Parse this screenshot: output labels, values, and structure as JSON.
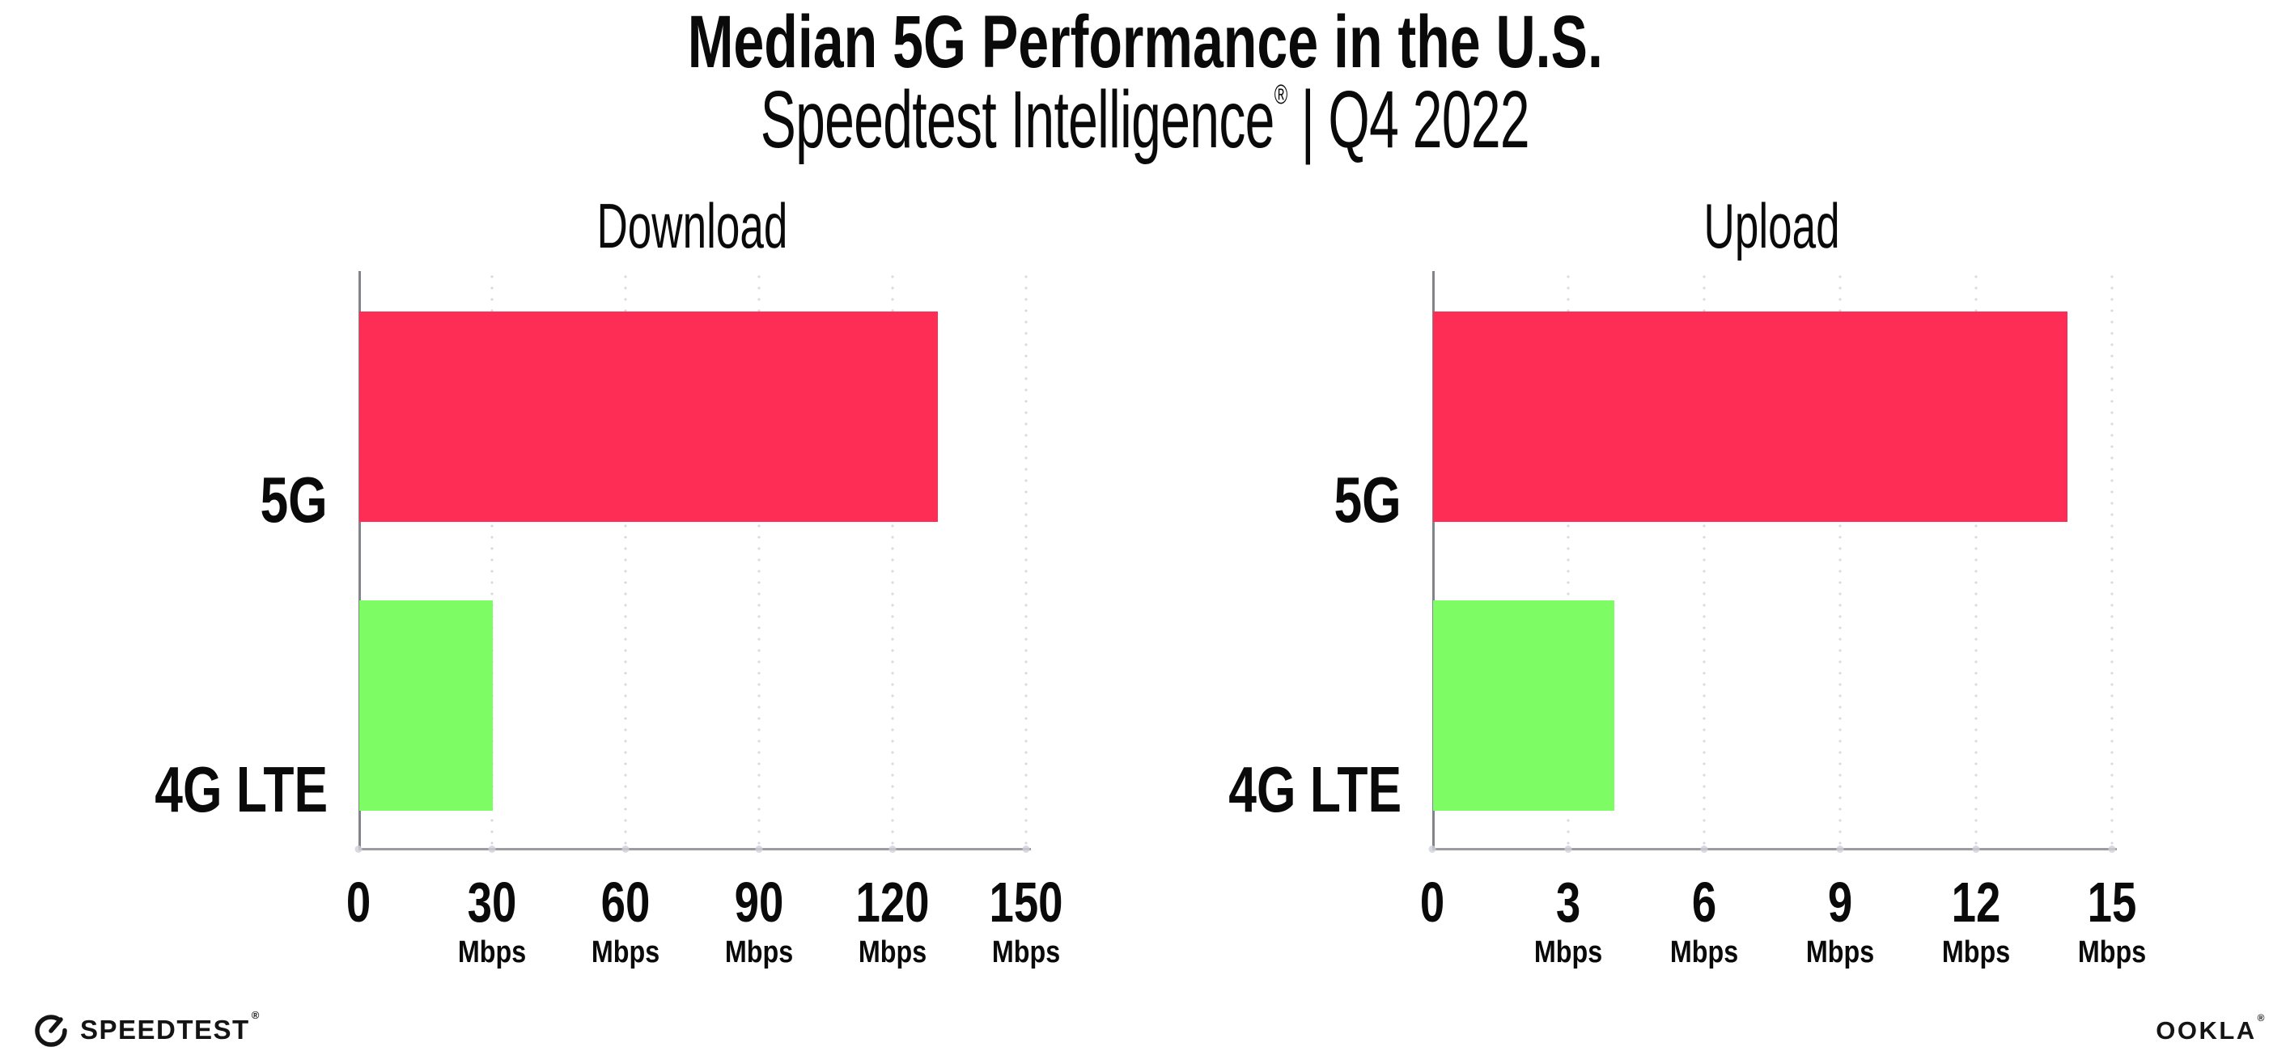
{
  "header": {
    "title": "Median 5G Performance in the U.S.",
    "subtitle": {
      "brand": "Speedtest Intelligence",
      "registered_mark": "®",
      "divider": "|",
      "period": "Q4 2022"
    }
  },
  "chart_data": [
    {
      "type": "bar",
      "orientation": "horizontal",
      "title": "Download",
      "categories": [
        "5G",
        "4G LTE"
      ],
      "values": [
        130,
        30
      ],
      "unit": "Mbps",
      "xlim": [
        0,
        150
      ],
      "xticks": [
        "0",
        "30",
        "60",
        "90",
        "120",
        "150"
      ],
      "grid": "dotted-vertical",
      "legend": "none",
      "bar_colors": [
        "#FD2D55",
        "#7DFC64"
      ]
    },
    {
      "type": "bar",
      "orientation": "horizontal",
      "title": "Upload",
      "categories": [
        "5G",
        "4G LTE"
      ],
      "values": [
        14,
        4
      ],
      "unit": "Mbps",
      "xlim": [
        0,
        15
      ],
      "xticks": [
        "0",
        "3",
        "6",
        "9",
        "12",
        "15"
      ],
      "grid": "dotted-vertical",
      "legend": "none",
      "bar_colors": [
        "#FD2D55",
        "#7DFC64"
      ]
    }
  ],
  "footer": {
    "speedtest_wordmark": "SPEEDTEST",
    "speedtest_mark": "®",
    "ookla_wordmark": "OOKLA",
    "ookla_mark": "®"
  },
  "colors": {
    "bar_5g": "#FD2D55",
    "bar_4g_lte": "#7DFC64",
    "gridline": "#D9D9E0",
    "x_axis": "#9B9BA1",
    "y_axis": "#83838B",
    "text": "#0A0A0A",
    "logo": "#141414"
  }
}
